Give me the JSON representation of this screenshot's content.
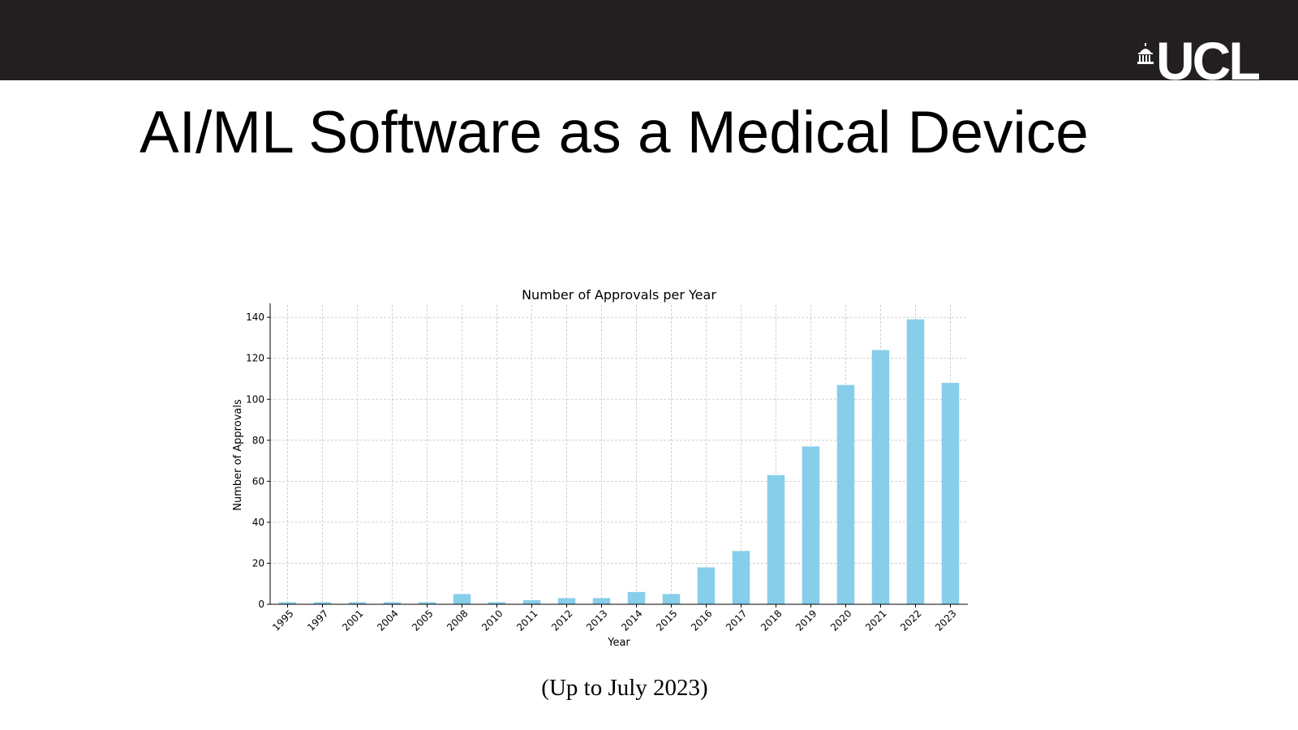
{
  "header": {
    "logo_text": "UCL",
    "logo_icon": "portico-dome-icon"
  },
  "slide": {
    "title": "AI/ML Software as a Medical Device",
    "caption": "(Up to July 2023)"
  },
  "colors": {
    "header_bg": "#231f20",
    "bar": "#87ceeb",
    "grid": "#c8c8c8"
  },
  "chart_data": {
    "type": "bar",
    "title": "Number of Approvals per Year",
    "xlabel": "Year",
    "ylabel": "Number of Approvals",
    "categories": [
      "1995",
      "1997",
      "2001",
      "2004",
      "2005",
      "2008",
      "2010",
      "2011",
      "2012",
      "2013",
      "2014",
      "2015",
      "2016",
      "2017",
      "2018",
      "2019",
      "2020",
      "2021",
      "2022",
      "2023"
    ],
    "values": [
      1,
      1,
      1,
      1,
      1,
      5,
      1,
      2,
      3,
      3,
      6,
      5,
      18,
      26,
      63,
      77,
      107,
      124,
      139,
      108
    ],
    "ylim": [
      0,
      146
    ],
    "yticks": [
      0,
      20,
      40,
      60,
      80,
      100,
      120,
      140
    ],
    "grid": true,
    "legend": "none"
  }
}
